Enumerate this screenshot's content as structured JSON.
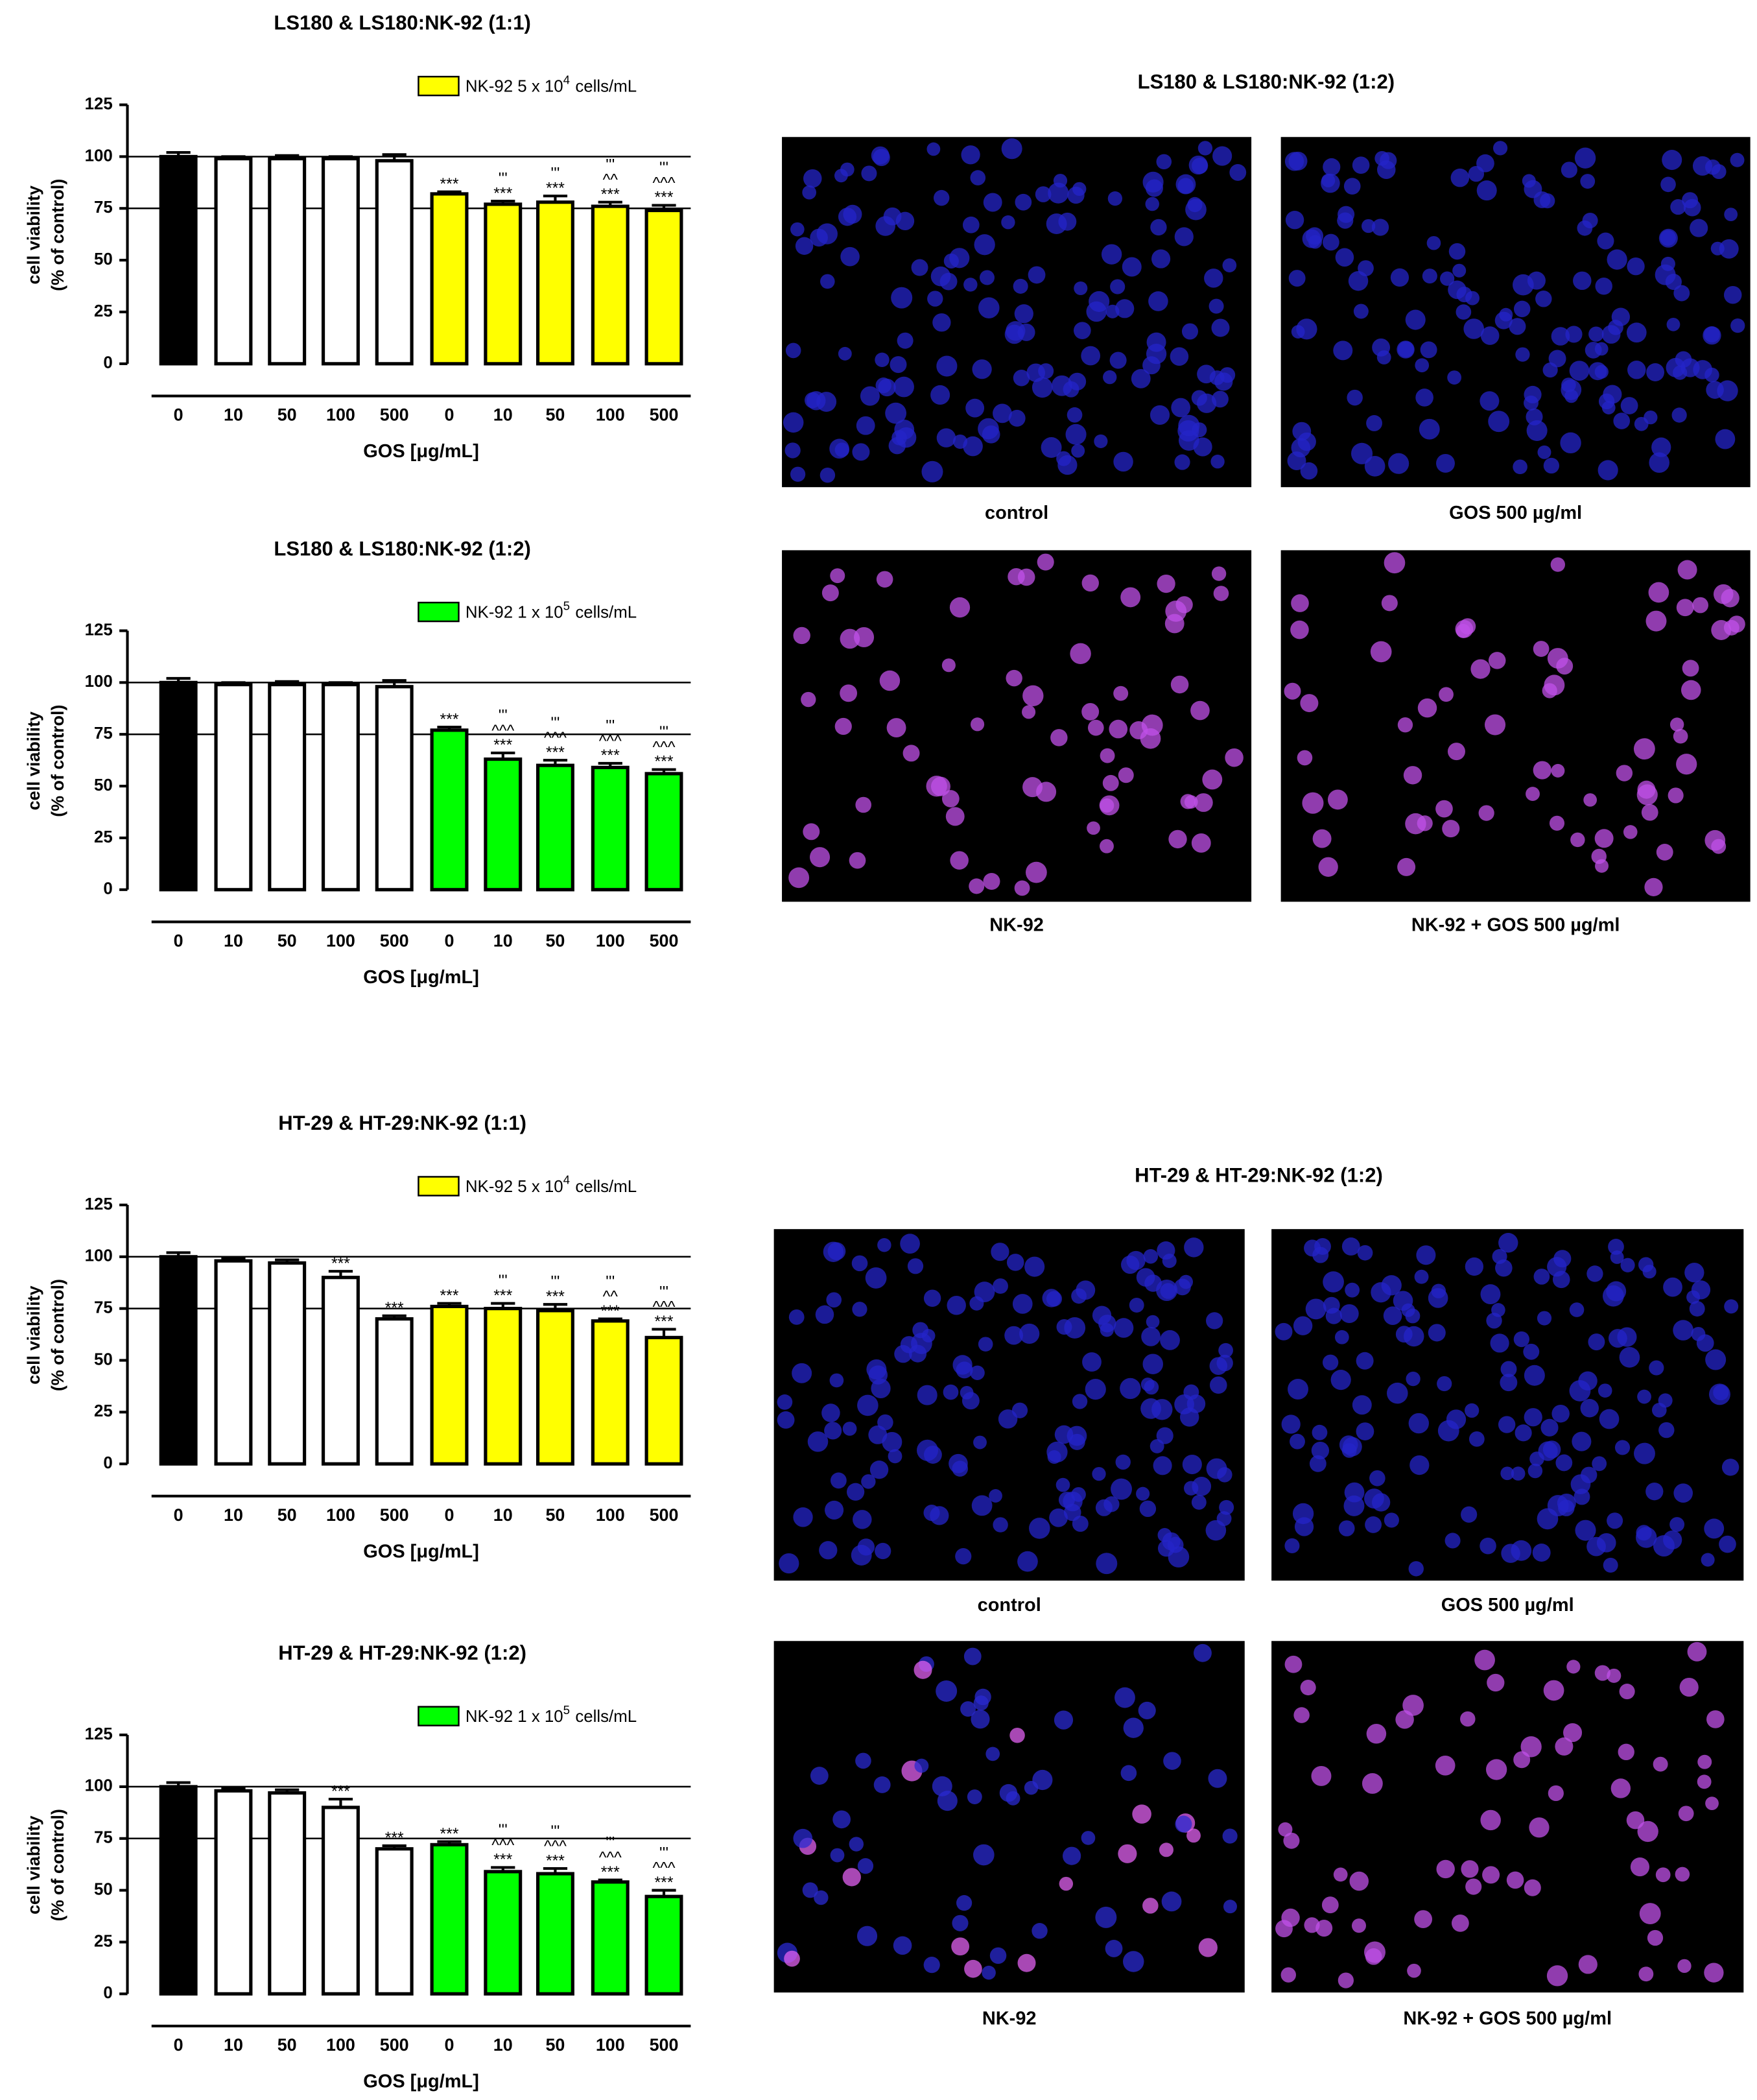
{
  "chart_data": [
    {
      "type": "bar",
      "title": "LS180 & LS180:NK-92 (1:1)",
      "legend_text": [
        "NK-92 5 x 10",
        "4",
        "cells/mL"
      ],
      "color": "#ffff00",
      "ylabel": [
        "cell viability",
        "(% of control)"
      ],
      "xlabel": "GOS [μg/mL]",
      "categories": [
        "0",
        "10",
        "50",
        "100",
        "500",
        "0",
        "10",
        "50",
        "100",
        "500"
      ],
      "values": [
        100,
        99,
        99,
        99,
        98,
        82,
        77,
        78,
        76,
        74
      ],
      "errors": [
        2,
        1,
        1.5,
        1,
        3,
        1,
        1.5,
        3,
        2,
        2.5
      ],
      "bar_colors": [
        "#000000",
        "#ffffff",
        "#ffffff",
        "#ffffff",
        "#ffffff",
        "#ffff00",
        "#ffff00",
        "#ffff00",
        "#ffff00",
        "#ffff00"
      ],
      "annotations": [
        [],
        [],
        [],
        [],
        [],
        [
          "***"
        ],
        [
          "'''",
          "***"
        ],
        [
          "'''",
          "***"
        ],
        [
          "'''",
          "^^",
          "***"
        ],
        [
          "'''",
          "^^^",
          "***"
        ]
      ],
      "ylim": [
        0,
        125
      ],
      "yticks": [
        0,
        25,
        50,
        75,
        100,
        125
      ],
      "reference_lines": [
        75,
        100
      ]
    },
    {
      "type": "bar",
      "title": "LS180 & LS180:NK-92 (1:2)",
      "legend_text": [
        "NK-92 1 x 10",
        "5",
        "cells/mL"
      ],
      "color": "#00ff00",
      "ylabel": [
        "cell viability",
        "(% of control)"
      ],
      "xlabel": "GOS [μg/mL]",
      "categories": [
        "0",
        "10",
        "50",
        "100",
        "500",
        "0",
        "10",
        "50",
        "100",
        "500"
      ],
      "values": [
        100,
        99,
        99,
        99,
        98,
        77,
        63,
        60,
        59,
        56
      ],
      "errors": [
        2,
        1,
        1.5,
        1,
        3,
        1.5,
        3,
        2.5,
        2,
        2
      ],
      "bar_colors": [
        "#000000",
        "#ffffff",
        "#ffffff",
        "#ffffff",
        "#ffffff",
        "#00ff00",
        "#00ff00",
        "#00ff00",
        "#00ff00",
        "#00ff00"
      ],
      "annotations": [
        [],
        [],
        [],
        [],
        [],
        [
          "***"
        ],
        [
          "'''",
          "^^^",
          "***"
        ],
        [
          "'''",
          "^^^",
          "***"
        ],
        [
          "'''",
          "^^^",
          "***"
        ],
        [
          "'''",
          "^^^",
          "***"
        ]
      ],
      "ylim": [
        0,
        125
      ],
      "yticks": [
        0,
        25,
        50,
        75,
        100,
        125
      ],
      "reference_lines": [
        75,
        100
      ]
    },
    {
      "type": "bar",
      "title": "HT-29 & HT-29:NK-92 (1:1)",
      "legend_text": [
        "NK-92 5 x 10",
        "4",
        "cells/mL"
      ],
      "color": "#ffff00",
      "ylabel": [
        "cell viability",
        "(% of control)"
      ],
      "xlabel": "GOS [μg/mL]",
      "categories": [
        "0",
        "10",
        "50",
        "100",
        "500",
        "0",
        "10",
        "50",
        "100",
        "500"
      ],
      "values": [
        100,
        98,
        97,
        90,
        70,
        76,
        75,
        74,
        69,
        61
      ],
      "errors": [
        2,
        1,
        1.5,
        3,
        1.5,
        1.5,
        2.5,
        3,
        1,
        4
      ],
      "bar_colors": [
        "#000000",
        "#ffffff",
        "#ffffff",
        "#ffffff",
        "#ffffff",
        "#ffff00",
        "#ffff00",
        "#ffff00",
        "#ffff00",
        "#ffff00"
      ],
      "annotations": [
        [],
        [],
        [],
        [
          "***"
        ],
        [
          "***"
        ],
        [
          "***"
        ],
        [
          "'''",
          "***"
        ],
        [
          "'''",
          "***"
        ],
        [
          "'''",
          "^^",
          "***"
        ],
        [
          "'''",
          "^^^",
          "***"
        ]
      ],
      "ylim": [
        0,
        125
      ],
      "yticks": [
        0,
        25,
        50,
        75,
        100,
        125
      ],
      "reference_lines": [
        75,
        100
      ]
    },
    {
      "type": "bar",
      "title": "HT-29 & HT-29:NK-92 (1:2)",
      "legend_text": [
        "NK-92 1 x 10",
        "5",
        "cells/mL"
      ],
      "color": "#00ff00",
      "ylabel": [
        "cell viability",
        "(% of control)"
      ],
      "xlabel": "GOS [μg/mL]",
      "categories": [
        "0",
        "10",
        "50",
        "100",
        "500",
        "0",
        "10",
        "50",
        "100",
        "500"
      ],
      "values": [
        100,
        98,
        97,
        90,
        70,
        72,
        59,
        58,
        54,
        47
      ],
      "errors": [
        2,
        1,
        1.5,
        4,
        1.5,
        1.5,
        2,
        2.5,
        1,
        3
      ],
      "bar_colors": [
        "#000000",
        "#ffffff",
        "#ffffff",
        "#ffffff",
        "#ffffff",
        "#00ff00",
        "#00ff00",
        "#00ff00",
        "#00ff00",
        "#00ff00"
      ],
      "annotations": [
        [],
        [],
        [],
        [
          "***"
        ],
        [
          "***"
        ],
        [
          "***"
        ],
        [
          "'''",
          "^^^",
          "***"
        ],
        [
          "'''",
          "^^^",
          "***"
        ],
        [
          "'''",
          "^^^",
          "***"
        ],
        [
          "'''",
          "^^^",
          "***"
        ]
      ],
      "ylim": [
        0,
        125
      ],
      "yticks": [
        0,
        25,
        50,
        75,
        100,
        125
      ],
      "reference_lines": [
        75,
        100
      ]
    }
  ],
  "image_panels": [
    {
      "title": "LS180 & LS180:NK-92 (1:2)",
      "captions": [
        "control",
        "GOS 500 µg/ml",
        "NK-92",
        "NK-92 + GOS 500 µg/ml"
      ]
    },
    {
      "title": "HT-29 & HT-29:NK-92 (1:2)",
      "captions": [
        "control",
        "GOS 500 µg/ml",
        "NK-92",
        "NK-92 + GOS 500 µg/ml"
      ]
    }
  ]
}
